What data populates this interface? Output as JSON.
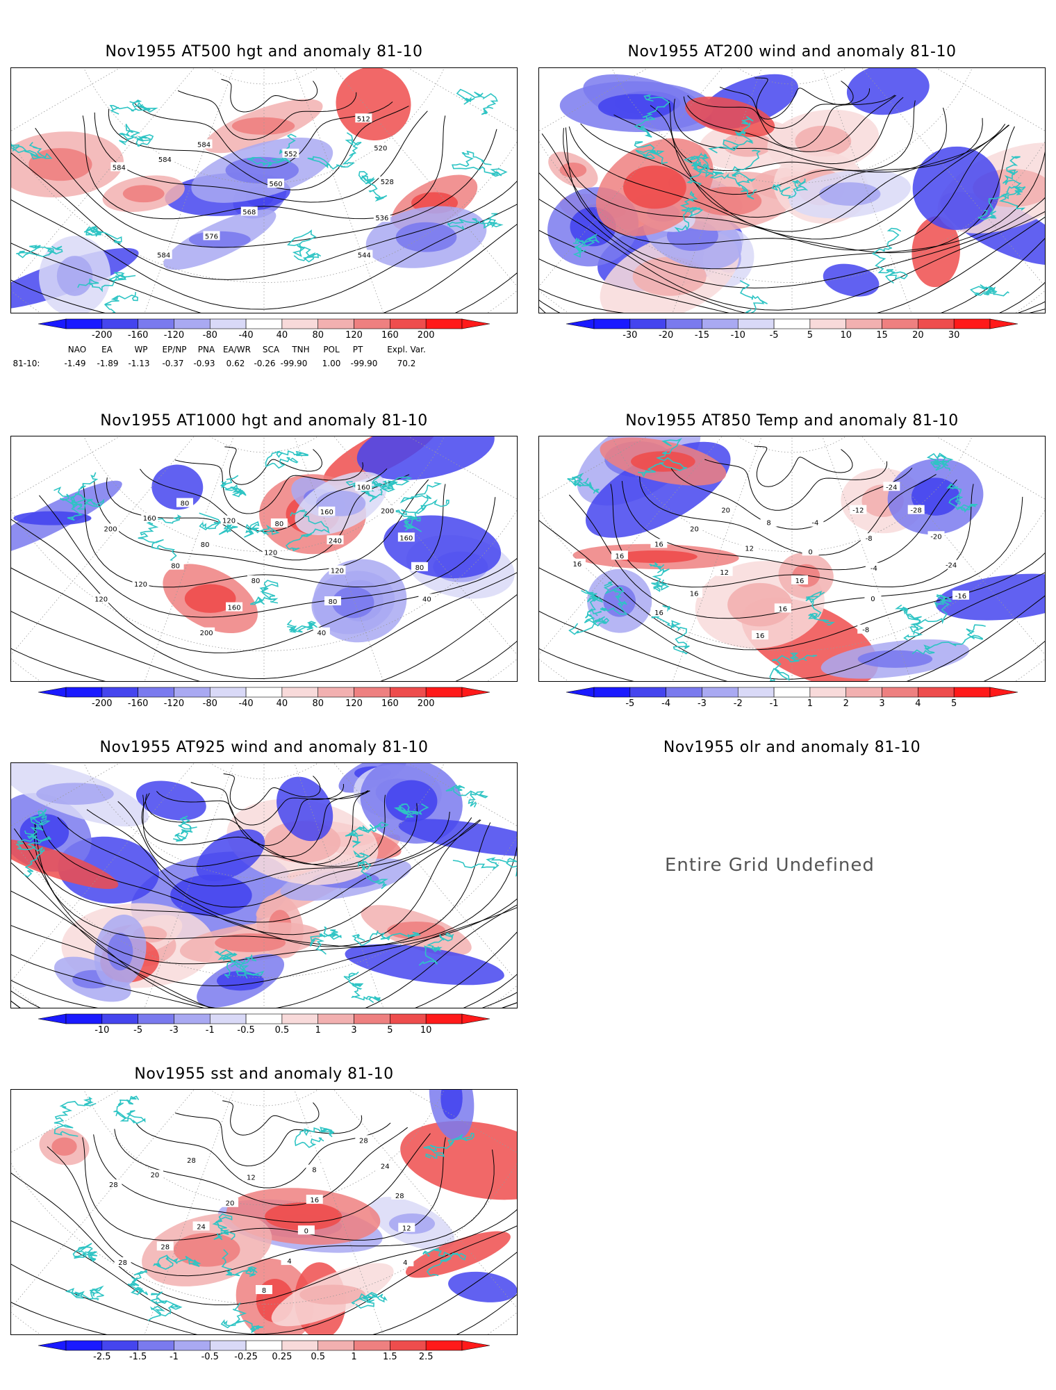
{
  "panels": [
    {
      "id": "p1",
      "title": "Nov1955 AT500 hgt and anomaly 81-10",
      "type": "contour",
      "colorbar": [
        "-200",
        "-160",
        "-120",
        "-80",
        "-40",
        "40",
        "80",
        "120",
        "160",
        "200"
      ],
      "contour_labels": [
        "512",
        "520",
        "528",
        "536",
        "544",
        "552",
        "560",
        "568",
        "576",
        "584",
        "584",
        "584",
        "584"
      ]
    },
    {
      "id": "p2",
      "title": "Nov1955 AT200 wind and anomaly 81-10",
      "type": "stream",
      "colorbar": [
        "-30",
        "-20",
        "-15",
        "-10",
        "-5",
        "5",
        "10",
        "15",
        "20",
        "30"
      ],
      "contour_labels": []
    },
    {
      "id": "p3",
      "title": "Nov1955 AT1000 hgt and anomaly 81-10",
      "type": "contour",
      "colorbar": [
        "-200",
        "-160",
        "-120",
        "-80",
        "-40",
        "40",
        "80",
        "120",
        "160",
        "200"
      ],
      "contour_labels": [
        "160",
        "200",
        "160",
        "80",
        "40",
        "160",
        "240",
        "120",
        "80",
        "40",
        "80",
        "120",
        "80",
        "160",
        "200",
        "120",
        "80",
        "80",
        "120",
        "120",
        "80",
        "160",
        "200"
      ]
    },
    {
      "id": "p4",
      "title": "Nov1955 AT850 Temp and anomaly 81-10",
      "type": "contour",
      "colorbar": [
        "-5",
        "-4",
        "-3",
        "-2",
        "-1",
        "1",
        "2",
        "3",
        "4",
        "5"
      ],
      "contour_labels": [
        "-24",
        "-28",
        "-20",
        "-24",
        "-16",
        "-12",
        "-8",
        "-4",
        "0",
        "-8",
        "-4",
        "0",
        "16",
        "16",
        "16",
        "8",
        "12",
        "12",
        "16",
        "16",
        "20",
        "20",
        "16",
        "16",
        "16"
      ]
    },
    {
      "id": "p5",
      "title": "Nov1955 AT925 wind and anomaly 81-10",
      "type": "stream",
      "colorbar": [
        "-10",
        "-5",
        "-3",
        "-1",
        "-0.5",
        "0.5",
        "1",
        "3",
        "5",
        "10"
      ],
      "contour_labels": []
    },
    {
      "id": "p6",
      "title": "Nov1955 olr and anomaly 81-10",
      "type": "empty",
      "message": "Entire Grid Undefined"
    },
    {
      "id": "p7",
      "title": "Nov1955 sst and anomaly 81-10",
      "type": "contour",
      "colorbar": [
        "-2.5",
        "-1.5",
        "-1",
        "-0.5",
        "-0.25",
        "0.25",
        "0.5",
        "1",
        "1.5",
        "2.5"
      ],
      "contour_labels": [
        "28",
        "24",
        "28",
        "12",
        "4",
        "8",
        "16",
        "0",
        "4",
        "8",
        "12",
        "20",
        "24",
        "28",
        "28",
        "28",
        "20",
        "28"
      ]
    }
  ],
  "teleconnections": {
    "headers": [
      "NAO",
      "EA",
      "WP",
      "EP/NP",
      "PNA",
      "EA/WR",
      "SCA",
      "TNH",
      "POL",
      "PT",
      "Expl. Var."
    ],
    "row_label": "81-10:",
    "values": [
      "-1.49",
      "-1.89",
      "-1.13",
      "-0.37",
      "-0.93",
      "0.62",
      "-0.26",
      "-99.90",
      "1.00",
      "-99.90",
      "70.2"
    ]
  },
  "colors": {
    "coast": "#2ec4c4",
    "negative_ramp": [
      "#1a1aff",
      "#4545ee",
      "#7a7aee",
      "#a9a9f2",
      "#d9d9f7"
    ],
    "positive_ramp": [
      "#f8dada",
      "#f2b0b0",
      "#ee8080",
      "#ee4d4d",
      "#ff1a1a"
    ]
  }
}
